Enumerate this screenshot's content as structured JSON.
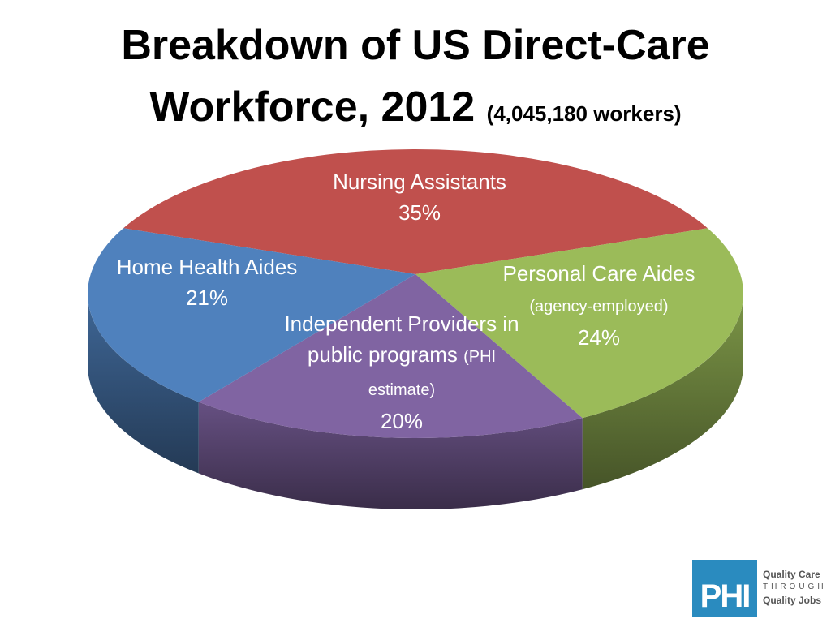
{
  "chart_data": {
    "type": "pie",
    "title": "Breakdown of US Direct-Care Workforce, 2012",
    "subtitle": "(4,045,180 workers)",
    "categories": [
      "Nursing Assistants",
      "Personal Care Aides",
      "Independent Providers in public programs",
      "Home Health Aides"
    ],
    "category_notes": [
      null,
      "(agency-employed)",
      "(PHI estimate)",
      null
    ],
    "values": [
      35,
      24,
      20,
      21
    ],
    "value_labels": [
      "35%",
      "24%",
      "20%",
      "21%"
    ],
    "colors": [
      "#c0504d",
      "#9bbb59",
      "#8064a2",
      "#4f81bd"
    ]
  },
  "logo": {
    "mark": "PHI",
    "lines": [
      "Quality Care",
      "THROUGH",
      "Quality Jobs"
    ]
  }
}
